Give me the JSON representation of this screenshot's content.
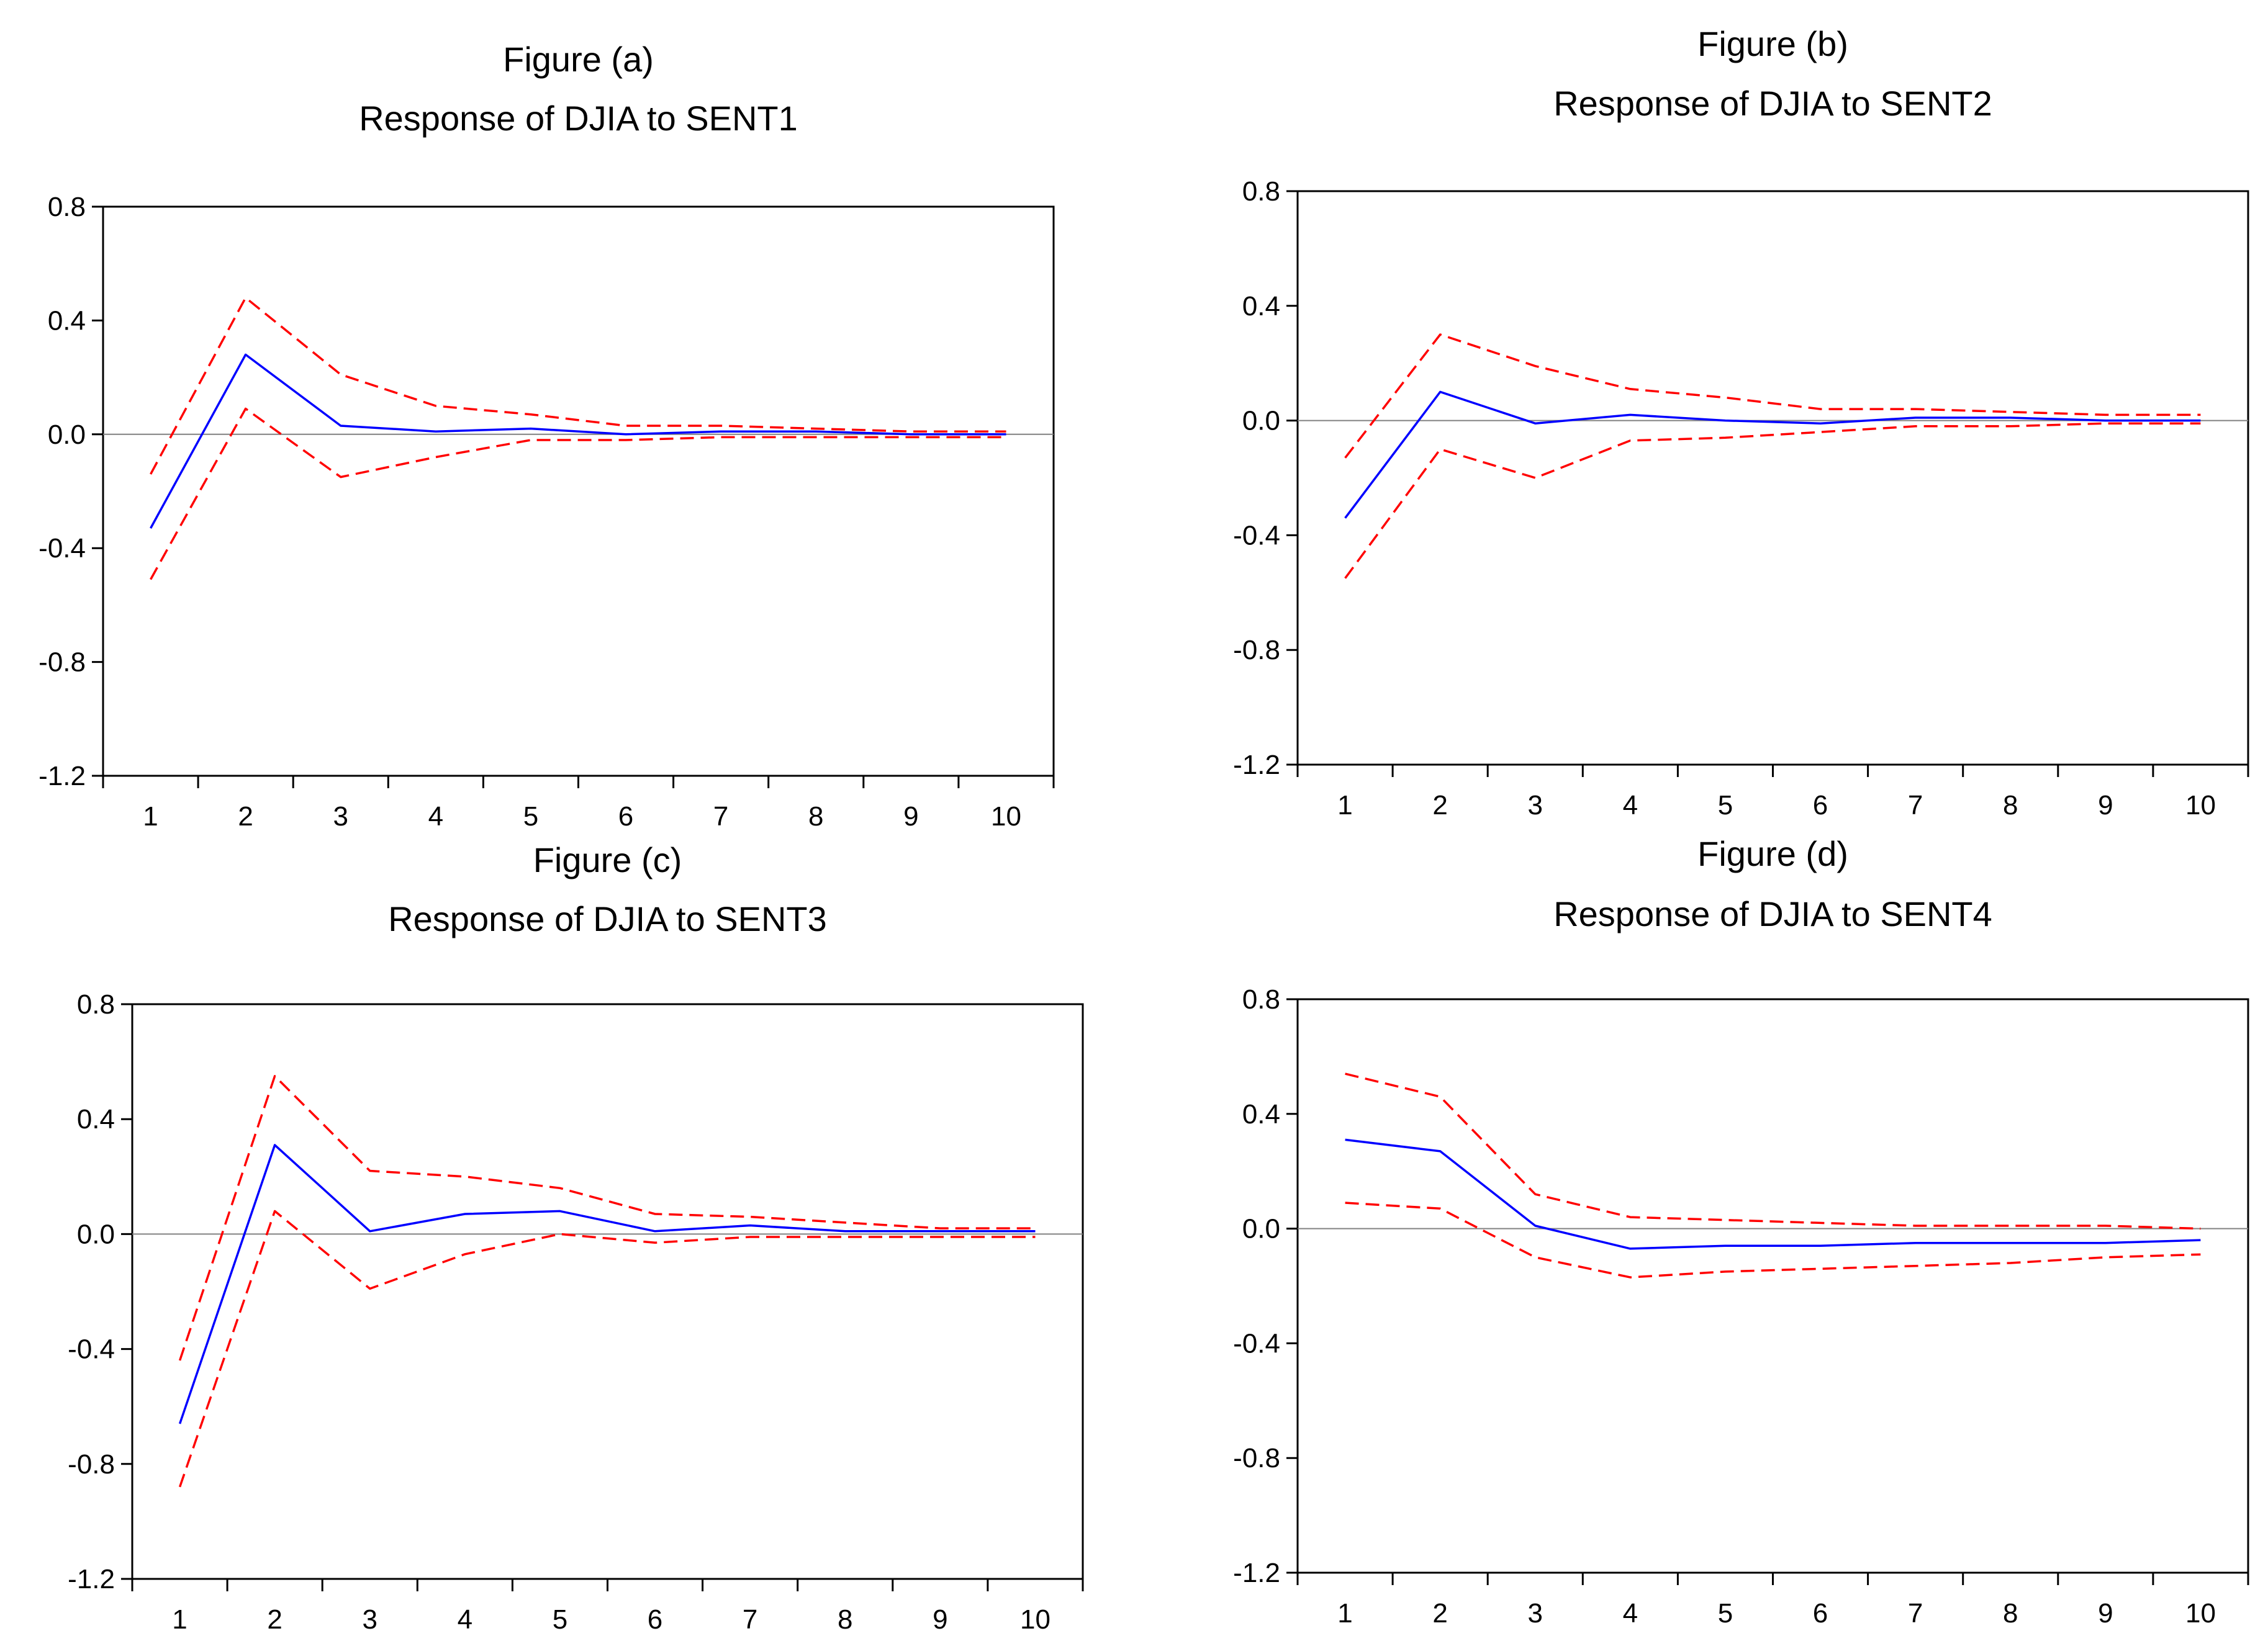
{
  "chart_data": [
    {
      "type": "line",
      "title": "Figure (a)",
      "subtitle": "Response of DJIA to SENT1",
      "x": [
        1,
        2,
        3,
        4,
        5,
        6,
        7,
        8,
        9,
        10
      ],
      "ylim": [
        -1.2,
        0.8
      ],
      "y_ticks": [
        "0.8",
        "0.4",
        "0.0",
        "-0.4",
        "-0.8",
        "-1.2"
      ],
      "y_tick_values": [
        0.8,
        0.4,
        0.0,
        -0.4,
        -0.8,
        -1.2
      ],
      "x_ticks": [
        "1",
        "2",
        "3",
        "4",
        "5",
        "6",
        "7",
        "8",
        "9",
        "10"
      ],
      "grid": false,
      "zero_line": true,
      "series": [
        {
          "role": "response",
          "color": "#0000ff",
          "dash": false,
          "values": [
            -0.33,
            0.28,
            0.03,
            0.01,
            0.02,
            0.0,
            0.01,
            0.01,
            0.0,
            0.0
          ]
        },
        {
          "role": "upper",
          "color": "#ff0000",
          "dash": true,
          "values": [
            -0.14,
            0.48,
            0.21,
            0.1,
            0.07,
            0.03,
            0.03,
            0.02,
            0.01,
            0.01
          ]
        },
        {
          "role": "lower",
          "color": "#ff0000",
          "dash": true,
          "values": [
            -0.51,
            0.09,
            -0.15,
            -0.08,
            -0.02,
            -0.02,
            -0.01,
            -0.01,
            -0.01,
            -0.01
          ]
        }
      ]
    },
    {
      "type": "line",
      "title": "Figure (b)",
      "subtitle": "Response of DJIA to SENT2",
      "x": [
        1,
        2,
        3,
        4,
        5,
        6,
        7,
        8,
        9,
        10
      ],
      "ylim": [
        -1.2,
        0.8
      ],
      "y_ticks": [
        "0.8",
        "0.4",
        "0.0",
        "-0.4",
        "-0.8",
        "-1.2"
      ],
      "y_tick_values": [
        0.8,
        0.4,
        0.0,
        -0.4,
        -0.8,
        -1.2
      ],
      "x_ticks": [
        "1",
        "2",
        "3",
        "4",
        "5",
        "6",
        "7",
        "8",
        "9",
        "10"
      ],
      "grid": false,
      "zero_line": true,
      "series": [
        {
          "role": "response",
          "color": "#0000ff",
          "dash": false,
          "values": [
            -0.34,
            0.1,
            -0.01,
            0.02,
            0.0,
            -0.01,
            0.01,
            0.01,
            0.0,
            0.0
          ]
        },
        {
          "role": "upper",
          "color": "#ff0000",
          "dash": true,
          "values": [
            -0.13,
            0.3,
            0.19,
            0.11,
            0.08,
            0.04,
            0.04,
            0.03,
            0.02,
            0.02
          ]
        },
        {
          "role": "lower",
          "color": "#ff0000",
          "dash": true,
          "values": [
            -0.55,
            -0.1,
            -0.2,
            -0.07,
            -0.06,
            -0.04,
            -0.02,
            -0.02,
            -0.01,
            -0.01
          ]
        }
      ]
    },
    {
      "type": "line",
      "title": "Figure (c)",
      "subtitle": "Response of DJIA to SENT3",
      "x": [
        1,
        2,
        3,
        4,
        5,
        6,
        7,
        8,
        9,
        10
      ],
      "ylim": [
        -1.2,
        0.8
      ],
      "y_ticks": [
        "0.8",
        "0.4",
        "0.0",
        "-0.4",
        "-0.8",
        "-1.2"
      ],
      "y_tick_values": [
        0.8,
        0.4,
        0.0,
        -0.4,
        -0.8,
        -1.2
      ],
      "x_ticks": [
        "1",
        "2",
        "3",
        "4",
        "5",
        "6",
        "7",
        "8",
        "9",
        "10"
      ],
      "grid": false,
      "zero_line": true,
      "series": [
        {
          "role": "response",
          "color": "#0000ff",
          "dash": false,
          "values": [
            -0.66,
            0.31,
            0.01,
            0.07,
            0.08,
            0.01,
            0.03,
            0.01,
            0.01,
            0.01
          ]
        },
        {
          "role": "upper",
          "color": "#ff0000",
          "dash": true,
          "values": [
            -0.44,
            0.55,
            0.22,
            0.2,
            0.16,
            0.07,
            0.06,
            0.04,
            0.02,
            0.02
          ]
        },
        {
          "role": "lower",
          "color": "#ff0000",
          "dash": true,
          "values": [
            -0.88,
            0.08,
            -0.19,
            -0.07,
            0.0,
            -0.03,
            -0.01,
            -0.01,
            -0.01,
            -0.01
          ]
        }
      ]
    },
    {
      "type": "line",
      "title": "Figure (d)",
      "subtitle": "Response of DJIA to SENT4",
      "x": [
        1,
        2,
        3,
        4,
        5,
        6,
        7,
        8,
        9,
        10
      ],
      "ylim": [
        -1.2,
        0.8
      ],
      "y_ticks": [
        "0.8",
        "0.4",
        "0.0",
        "-0.4",
        "-0.8",
        "-1.2"
      ],
      "y_tick_values": [
        0.8,
        0.4,
        0.0,
        -0.4,
        -0.8,
        -1.2
      ],
      "x_ticks": [
        "1",
        "2",
        "3",
        "4",
        "5",
        "6",
        "7",
        "8",
        "9",
        "10"
      ],
      "grid": false,
      "zero_line": true,
      "series": [
        {
          "role": "response",
          "color": "#0000ff",
          "dash": false,
          "values": [
            0.31,
            0.27,
            0.01,
            -0.07,
            -0.06,
            -0.06,
            -0.05,
            -0.05,
            -0.05,
            -0.04
          ]
        },
        {
          "role": "upper",
          "color": "#ff0000",
          "dash": true,
          "values": [
            0.54,
            0.46,
            0.12,
            0.04,
            0.03,
            0.02,
            0.01,
            0.01,
            0.01,
            0.0
          ]
        },
        {
          "role": "lower",
          "color": "#ff0000",
          "dash": true,
          "values": [
            0.09,
            0.07,
            -0.1,
            -0.17,
            -0.15,
            -0.14,
            -0.13,
            -0.12,
            -0.1,
            -0.09
          ]
        }
      ]
    }
  ]
}
